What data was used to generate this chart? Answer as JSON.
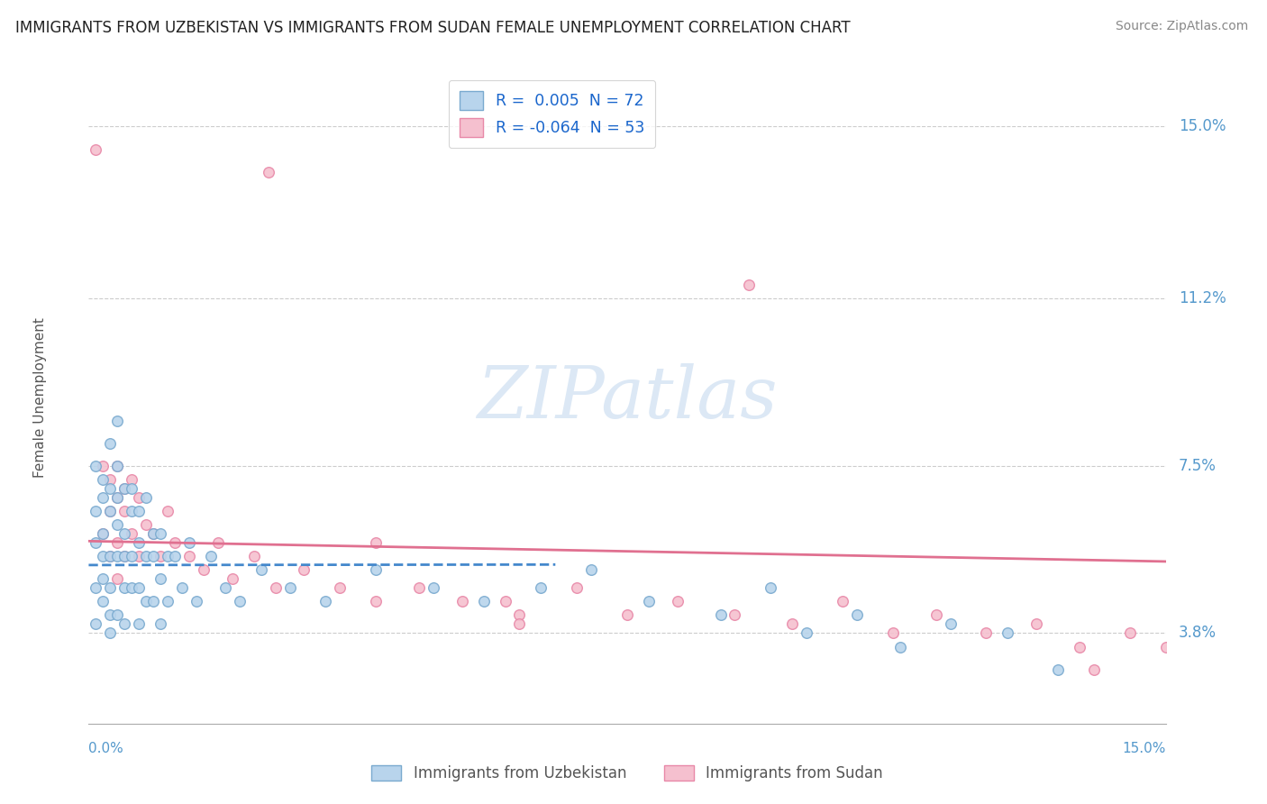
{
  "title": "IMMIGRANTS FROM UZBEKISTAN VS IMMIGRANTS FROM SUDAN FEMALE UNEMPLOYMENT CORRELATION CHART",
  "source": "Source: ZipAtlas.com",
  "ylabel": "Female Unemployment",
  "y_tick_values": [
    0.038,
    0.075,
    0.112,
    0.15
  ],
  "y_tick_labels": [
    "3.8%",
    "7.5%",
    "11.2%",
    "15.0%"
  ],
  "xlim": [
    0.0,
    0.15
  ],
  "ylim": [
    0.018,
    0.162
  ],
  "legend_entries": [
    {
      "label": "R =  0.005  N = 72",
      "color": "#b8d4ec"
    },
    {
      "label": "R = -0.064  N = 53",
      "color": "#f5c0cf"
    }
  ],
  "legend_bottom": [
    "Immigrants from Uzbekistan",
    "Immigrants from Sudan"
  ],
  "legend_bottom_colors": [
    "#b8d4ec",
    "#f5c0cf"
  ],
  "title_color": "#222222",
  "source_color": "#888888",
  "axis_label_color": "#5599cc",
  "grid_color": "#cccccc",
  "series1_color": "#b8d4ec",
  "series1_edge": "#7aaacf",
  "series2_color": "#f5c0cf",
  "series2_edge": "#e888a8",
  "trendline1_color": "#4488cc",
  "trendline2_color": "#e07090",
  "uz_x": [
    0.001,
    0.001,
    0.001,
    0.001,
    0.001,
    0.002,
    0.002,
    0.002,
    0.002,
    0.002,
    0.002,
    0.003,
    0.003,
    0.003,
    0.003,
    0.003,
    0.003,
    0.003,
    0.004,
    0.004,
    0.004,
    0.004,
    0.004,
    0.004,
    0.005,
    0.005,
    0.005,
    0.005,
    0.005,
    0.006,
    0.006,
    0.006,
    0.006,
    0.007,
    0.007,
    0.007,
    0.007,
    0.008,
    0.008,
    0.008,
    0.009,
    0.009,
    0.009,
    0.01,
    0.01,
    0.01,
    0.011,
    0.011,
    0.012,
    0.013,
    0.014,
    0.015,
    0.017,
    0.019,
    0.021,
    0.024,
    0.028,
    0.033,
    0.04,
    0.048,
    0.055,
    0.063,
    0.07,
    0.078,
    0.088,
    0.095,
    0.1,
    0.107,
    0.113,
    0.12,
    0.128,
    0.135
  ],
  "uz_y": [
    0.058,
    0.048,
    0.065,
    0.075,
    0.04,
    0.055,
    0.068,
    0.045,
    0.072,
    0.06,
    0.05,
    0.08,
    0.065,
    0.055,
    0.048,
    0.038,
    0.07,
    0.042,
    0.085,
    0.068,
    0.055,
    0.042,
    0.062,
    0.075,
    0.06,
    0.048,
    0.07,
    0.055,
    0.04,
    0.065,
    0.055,
    0.048,
    0.07,
    0.058,
    0.048,
    0.065,
    0.04,
    0.055,
    0.045,
    0.068,
    0.055,
    0.045,
    0.06,
    0.05,
    0.04,
    0.06,
    0.055,
    0.045,
    0.055,
    0.048,
    0.058,
    0.045,
    0.055,
    0.048,
    0.045,
    0.052,
    0.048,
    0.045,
    0.052,
    0.048,
    0.045,
    0.048,
    0.052,
    0.045,
    0.042,
    0.048,
    0.038,
    0.042,
    0.035,
    0.04,
    0.038,
    0.03
  ],
  "sd_x": [
    0.001,
    0.002,
    0.002,
    0.003,
    0.003,
    0.003,
    0.004,
    0.004,
    0.004,
    0.004,
    0.005,
    0.005,
    0.005,
    0.006,
    0.006,
    0.007,
    0.007,
    0.008,
    0.009,
    0.01,
    0.011,
    0.012,
    0.014,
    0.016,
    0.018,
    0.02,
    0.023,
    0.026,
    0.03,
    0.035,
    0.04,
    0.046,
    0.052,
    0.06,
    0.068,
    0.075,
    0.082,
    0.09,
    0.098,
    0.105,
    0.112,
    0.118,
    0.125,
    0.132,
    0.138,
    0.145,
    0.15,
    0.092,
    0.04,
    0.058,
    0.025,
    0.06,
    0.14
  ],
  "sd_y": [
    0.145,
    0.06,
    0.075,
    0.065,
    0.055,
    0.072,
    0.068,
    0.058,
    0.075,
    0.05,
    0.065,
    0.055,
    0.07,
    0.06,
    0.072,
    0.068,
    0.055,
    0.062,
    0.06,
    0.055,
    0.065,
    0.058,
    0.055,
    0.052,
    0.058,
    0.05,
    0.055,
    0.048,
    0.052,
    0.048,
    0.045,
    0.048,
    0.045,
    0.042,
    0.048,
    0.042,
    0.045,
    0.042,
    0.04,
    0.045,
    0.038,
    0.042,
    0.038,
    0.04,
    0.035,
    0.038,
    0.035,
    0.115,
    0.058,
    0.045,
    0.14,
    0.04,
    0.03
  ]
}
